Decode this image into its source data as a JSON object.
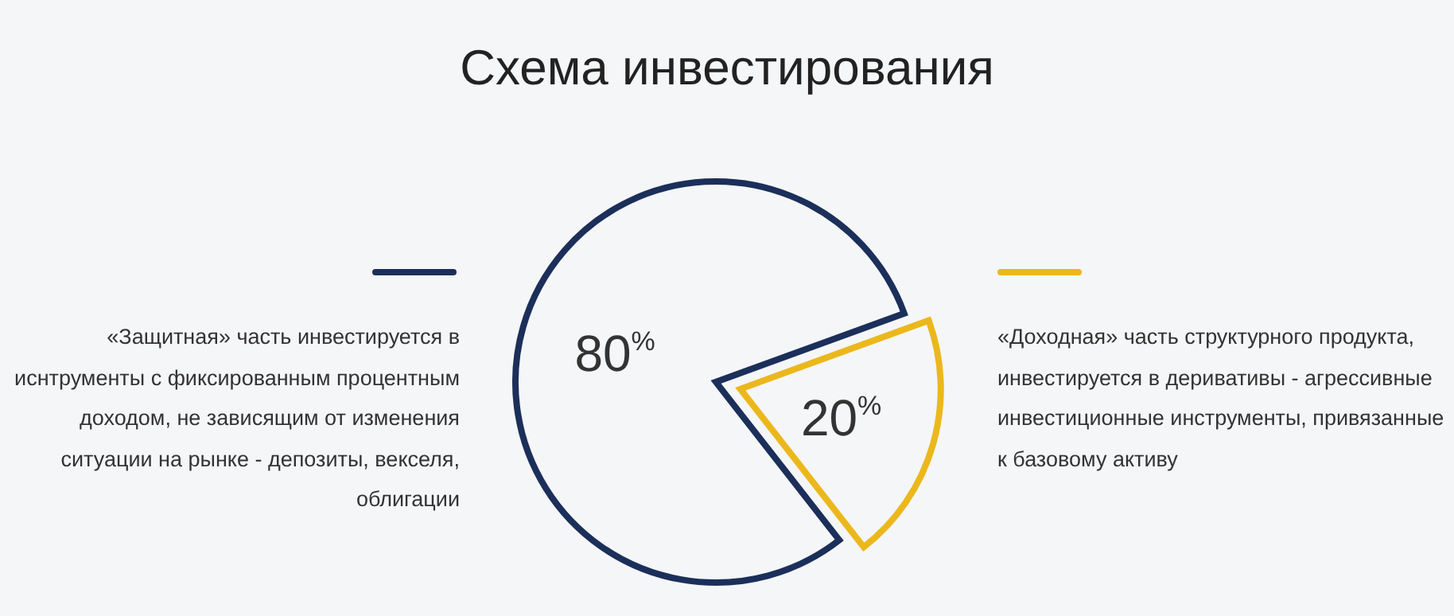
{
  "chart_data": {
    "type": "pie",
    "title": "Схема инвестирования",
    "categories": [
      "«Защитная» часть инвестируется в иснтрументы с фиксированным процентным доходом, не зависящим от изменения ситуации на рынке - депозиты, векселя, облигации",
      "«Доходная» часть структурного продукта, инвестируется в деривативы - агрессивные инвестиционные инструменты, привязанные к базовому активу"
    ],
    "values": [
      80,
      20
    ],
    "colors": [
      "#1b2f5a",
      "#ebb81c"
    ],
    "value_labels": [
      "80%",
      "20%"
    ]
  }
}
